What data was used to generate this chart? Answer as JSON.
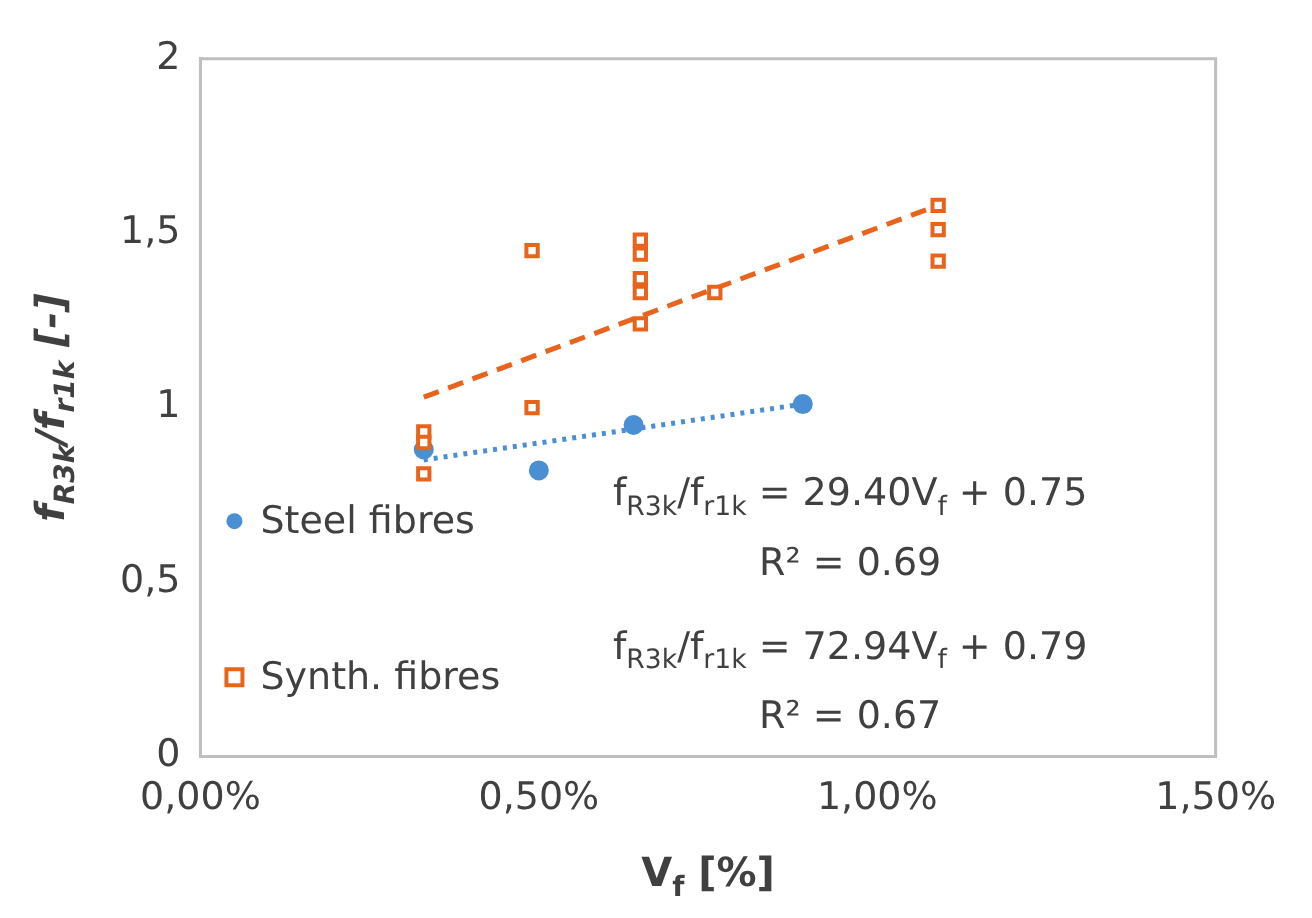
{
  "chart_data": {
    "type": "scatter",
    "xlabel": "V$_{f}$ [%]",
    "ylabel": "f$_{R3k}$/f$_{r1k}$ [-]",
    "xlim": [
      0,
      1.5
    ],
    "xticks": [
      {
        "value": 0,
        "label": "0,00%"
      },
      {
        "value": 0.5,
        "label": "0,50%"
      },
      {
        "value": 1,
        "label": "1,00%"
      },
      {
        "value": 1.5,
        "label": "1,50%"
      }
    ],
    "ylim": [
      0,
      2
    ],
    "yticks": [
      0,
      {
        "value": 0.5,
        "label": "0,5"
      },
      1,
      {
        "value": 1.5,
        "label": "1,5"
      },
      2
    ],
    "grid": false,
    "legend": "left",
    "series": [
      {
        "name": "Steel fibres",
        "color": "#4a8fd4",
        "marker": "circle",
        "x": [
          0.33,
          0.5,
          0.64,
          0.89
        ],
        "values": [
          0.88,
          0.82,
          0.95,
          1.01
        ]
      },
      {
        "name": "Synth. fibres",
        "color": "#e8641c",
        "marker": "square",
        "x": [
          0.33,
          0.33,
          0.33,
          0.49,
          0.49,
          0.65,
          0.65,
          0.65,
          0.65,
          0.65,
          0.76,
          1.09,
          1.09,
          1.09
        ],
        "values": [
          0.93,
          0.9,
          0.81,
          1.45,
          1.0,
          1.48,
          1.44,
          1.37,
          1.33,
          1.24,
          1.33,
          1.58,
          1.51,
          1.42
        ]
      },
      {
        "type": "line",
        "color": "#4a8fd4",
        "line_style": "dotted",
        "marker": "none",
        "x": [
          0.33,
          0.89
        ],
        "values": [
          0.85,
          1.01
        ]
      },
      {
        "type": "line",
        "color": "#e8641c",
        "line_style": "dashed",
        "marker": "none",
        "x": [
          0.33,
          1.09
        ],
        "values": [
          1.03,
          1.58
        ]
      }
    ],
    "annotations": [
      "f$_{R3k}$/f$_{r1k}$ = 29.40V$_{f}$ + 0.75",
      "R² = 0.69",
      "f$_{R3k}$/f$_{r1k}$ = 72.94V$_{f}$ + 0.79",
      "R² = 0.67"
    ]
  }
}
